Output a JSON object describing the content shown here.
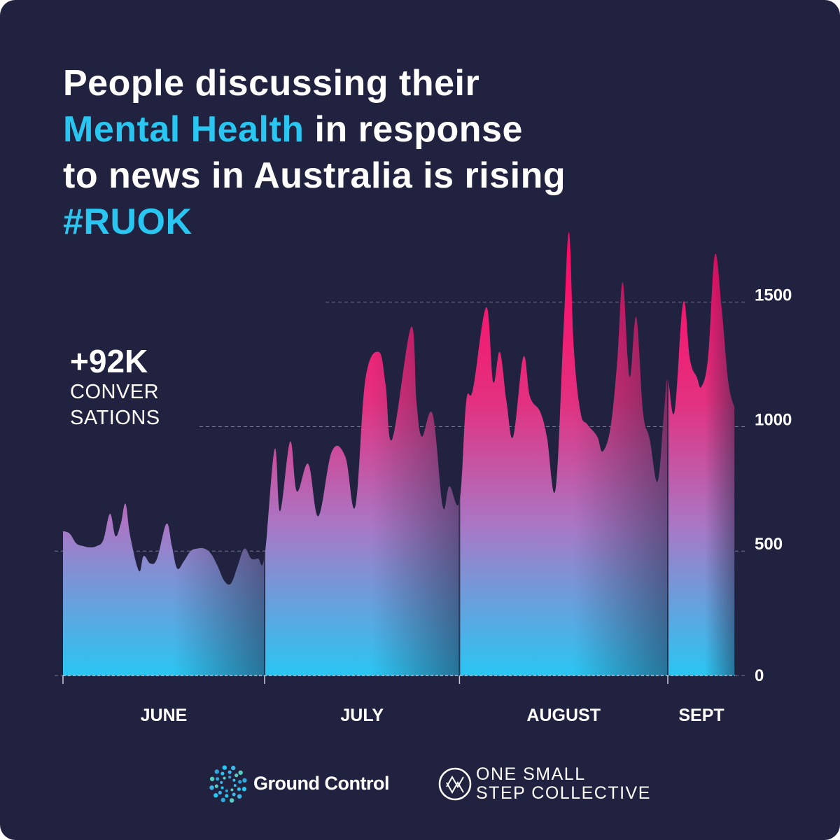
{
  "title": {
    "line1": "People discussing their",
    "line2_highlight": "Mental Health",
    "line2_rest": " in response",
    "line3": "to news in Australia is rising",
    "hashtag": "#RUOK"
  },
  "kpi": {
    "value": "+92K",
    "label_line1": "CONVER",
    "label_line2": "SATIONS"
  },
  "colors": {
    "background": "#21223f",
    "accent": "#29c6f2",
    "area_top": "#ff0a66",
    "area_bottom": "#29c6f2"
  },
  "chart_data": {
    "type": "area",
    "ylim": [
      0,
      1800
    ],
    "yticks": [
      "0",
      "500",
      "1000",
      "1500"
    ],
    "ytick_values": [
      0,
      500,
      1000,
      1500
    ],
    "grid": "dashed horizontal",
    "months": [
      {
        "label": "JUNE",
        "start": 0,
        "end": 30
      },
      {
        "label": "JULY",
        "start": 30,
        "end": 59
      },
      {
        "label": "AUGUST",
        "start": 59,
        "end": 90
      },
      {
        "label": "SEPT",
        "start": 90,
        "end": 100
      }
    ],
    "x_domain": [
      0,
      100
    ],
    "series": [
      {
        "values": [
          [
            0,
            580
          ],
          [
            1,
            570
          ],
          [
            2,
            530
          ],
          [
            3,
            520
          ],
          [
            4,
            515
          ],
          [
            5,
            520
          ],
          [
            6,
            545
          ],
          [
            7,
            650
          ],
          [
            7.8,
            560
          ],
          [
            8.6,
            610
          ],
          [
            9.3,
            690
          ],
          [
            10,
            560
          ],
          [
            11.3,
            420
          ],
          [
            12,
            480
          ],
          [
            13,
            450
          ],
          [
            14,
            470
          ],
          [
            15.4,
            610
          ],
          [
            16.2,
            520
          ],
          [
            17,
            430
          ],
          [
            18,
            460
          ],
          [
            19,
            500
          ],
          [
            20,
            510
          ],
          [
            21,
            510
          ],
          [
            22,
            490
          ],
          [
            23,
            440
          ],
          [
            24,
            380
          ],
          [
            25,
            370
          ],
          [
            26,
            440
          ],
          [
            27,
            510
          ],
          [
            28,
            470
          ],
          [
            29,
            470
          ],
          [
            30,
            480
          ],
          [
            31.5,
            910
          ],
          [
            32.3,
            660
          ],
          [
            33.8,
            940
          ],
          [
            34.8,
            740
          ],
          [
            36.5,
            850
          ],
          [
            38,
            640
          ],
          [
            40,
            900
          ],
          [
            42,
            880
          ],
          [
            43.5,
            680
          ],
          [
            45,
            1190
          ],
          [
            47,
            1300
          ],
          [
            48,
            1170
          ],
          [
            49,
            950
          ],
          [
            51.8,
            1400
          ],
          [
            52.6,
            1100
          ],
          [
            53.4,
            960
          ],
          [
            55,
            1050
          ],
          [
            56.5,
            680
          ],
          [
            57.5,
            760
          ],
          [
            59,
            700
          ],
          [
            60,
            1100
          ],
          [
            61,
            1150
          ],
          [
            63,
            1480
          ],
          [
            64,
            1180
          ],
          [
            65,
            1300
          ],
          [
            66,
            1100
          ],
          [
            67,
            960
          ],
          [
            68.5,
            1280
          ],
          [
            69.5,
            1120
          ],
          [
            71,
            1060
          ],
          [
            72,
            960
          ],
          [
            73.3,
            750
          ],
          [
            74.5,
            1400
          ],
          [
            75.3,
            1780
          ],
          [
            76,
            1320
          ],
          [
            77,
            1060
          ],
          [
            78,
            1010
          ],
          [
            79.5,
            960
          ],
          [
            80.3,
            900
          ],
          [
            81.5,
            1000
          ],
          [
            82.5,
            1270
          ],
          [
            83.3,
            1580
          ],
          [
            84.3,
            1200
          ],
          [
            85.3,
            1440
          ],
          [
            86.3,
            1060
          ],
          [
            87.3,
            950
          ],
          [
            88.5,
            780
          ],
          [
            89.5,
            1080
          ],
          [
            90,
            1190
          ],
          [
            91,
            1060
          ],
          [
            92.3,
            1500
          ],
          [
            93.3,
            1270
          ],
          [
            94.3,
            1200
          ],
          [
            95,
            1160
          ],
          [
            96,
            1280
          ],
          [
            97,
            1690
          ],
          [
            98,
            1480
          ],
          [
            99,
            1180
          ],
          [
            100,
            1070
          ]
        ]
      }
    ]
  },
  "logos": {
    "ground_control": "Ground Control",
    "one_small_line1": "ONE SMALL",
    "one_small_line2": "STEP COLLECTIVE"
  }
}
